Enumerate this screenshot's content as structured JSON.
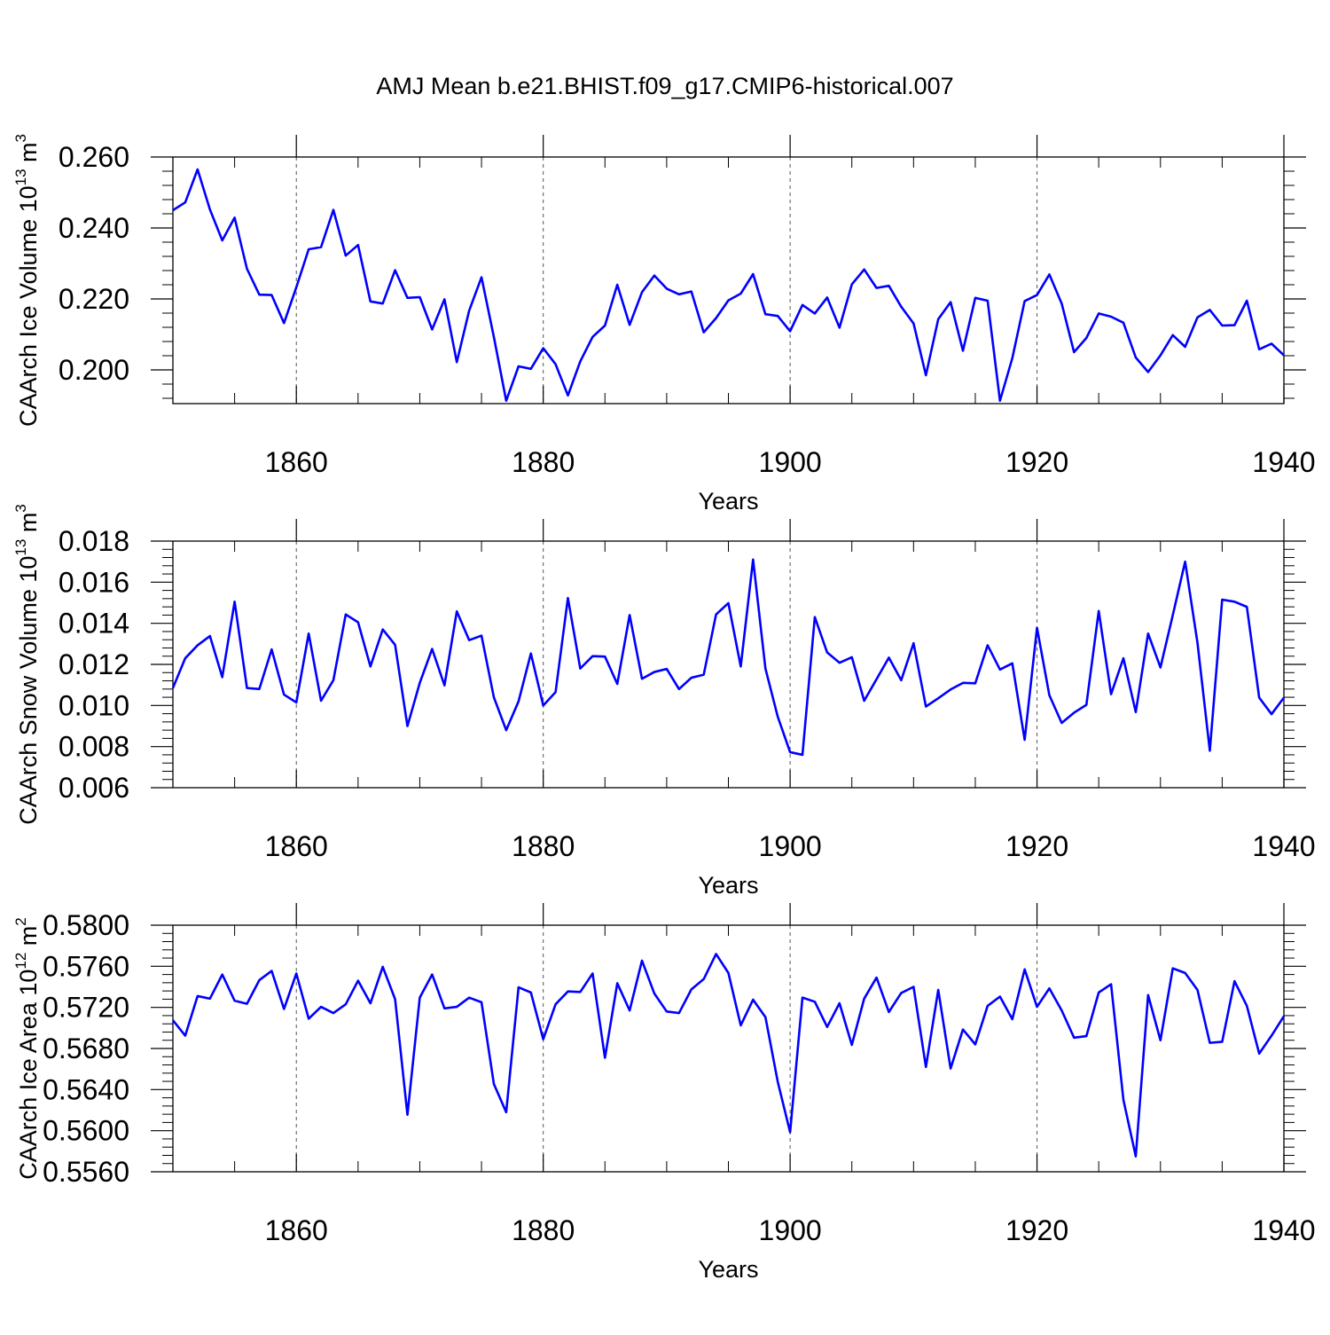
{
  "title": "AMJ Mean b.e21.BHIST.f09_g17.CMIP6-historical.007",
  "line_color": "#0000ff",
  "chart_data": [
    {
      "type": "line",
      "xlabel": "Years",
      "ylabel_main": "CAArch Ice Volume 10",
      "ylabel_exp": "13",
      "ylabel_unit": " m",
      "ylabel_unit_exp": "3",
      "xlim": [
        1850,
        1940
      ],
      "ylim": [
        0.1905,
        0.26
      ],
      "xticks": [
        1860,
        1880,
        1900,
        1920,
        1940
      ],
      "xtick_labels": [
        "1860",
        "1880",
        "1900",
        "1920",
        "1940"
      ],
      "yticks": [
        0.2,
        0.22,
        0.24,
        0.26
      ],
      "ytick_labels": [
        "0.200",
        "0.220",
        "0.240",
        "0.260"
      ],
      "grid": "vertical-dashed",
      "x": [
        1850,
        1851,
        1852,
        1853,
        1854,
        1855,
        1856,
        1857,
        1858,
        1859,
        1860,
        1861,
        1862,
        1863,
        1864,
        1865,
        1866,
        1867,
        1868,
        1869,
        1870,
        1871,
        1872,
        1873,
        1874,
        1875,
        1876,
        1877,
        1878,
        1879,
        1880,
        1881,
        1882,
        1883,
        1884,
        1885,
        1886,
        1887,
        1888,
        1889,
        1890,
        1891,
        1892,
        1893,
        1894,
        1895,
        1896,
        1897,
        1898,
        1899,
        1900,
        1901,
        1902,
        1903,
        1904,
        1905,
        1906,
        1907,
        1908,
        1909,
        1910,
        1911,
        1912,
        1913,
        1914,
        1915,
        1916,
        1917,
        1918,
        1919,
        1920,
        1921,
        1922,
        1923,
        1924,
        1925,
        1926,
        1927,
        1928,
        1929,
        1930,
        1931,
        1932,
        1933,
        1934,
        1935,
        1936,
        1937,
        1938,
        1939,
        1940
      ],
      "y": [
        0.245,
        0.2472,
        0.2565,
        0.2452,
        0.2365,
        0.2429,
        0.2285,
        0.2212,
        0.2211,
        0.2132,
        0.2233,
        0.234,
        0.2346,
        0.2451,
        0.2322,
        0.2352,
        0.2193,
        0.2187,
        0.2281,
        0.2203,
        0.2205,
        0.2114,
        0.2199,
        0.2022,
        0.2167,
        0.2261,
        0.2093,
        0.1913,
        0.201,
        0.2003,
        0.2061,
        0.2016,
        0.1928,
        0.2024,
        0.2093,
        0.2125,
        0.224,
        0.2127,
        0.2219,
        0.2266,
        0.2229,
        0.2213,
        0.2221,
        0.2106,
        0.2146,
        0.2196,
        0.2215,
        0.227,
        0.2157,
        0.2152,
        0.2109,
        0.2183,
        0.2159,
        0.2204,
        0.2119,
        0.2241,
        0.2283,
        0.2231,
        0.2237,
        0.2178,
        0.2131,
        0.1985,
        0.2143,
        0.2191,
        0.2054,
        0.2203,
        0.2195,
        0.1913,
        0.2033,
        0.2194,
        0.2211,
        0.2269,
        0.2187,
        0.205,
        0.209,
        0.2159,
        0.215,
        0.2133,
        0.2035,
        0.1994,
        0.2041,
        0.2098,
        0.2065,
        0.2148,
        0.2169,
        0.2125,
        0.2126,
        0.2195,
        0.2058,
        0.2074,
        0.2041
      ]
    },
    {
      "type": "line",
      "xlabel": "Years",
      "ylabel_main": "CAArch Snow Volume 10",
      "ylabel_exp": "13",
      "ylabel_unit": " m",
      "ylabel_unit_exp": "3",
      "xlim": [
        1850,
        1940
      ],
      "ylim": [
        0.006,
        0.018
      ],
      "xticks": [
        1860,
        1880,
        1900,
        1920,
        1940
      ],
      "xtick_labels": [
        "1860",
        "1880",
        "1900",
        "1920",
        "1940"
      ],
      "yticks": [
        0.006,
        0.008,
        0.01,
        0.012,
        0.014,
        0.016,
        0.018
      ],
      "ytick_labels": [
        "0.006",
        "0.008",
        "0.010",
        "0.012",
        "0.014",
        "0.016",
        "0.018"
      ],
      "grid": "vertical-dashed",
      "x": [
        1850,
        1851,
        1852,
        1853,
        1854,
        1855,
        1856,
        1857,
        1858,
        1859,
        1860,
        1861,
        1862,
        1863,
        1864,
        1865,
        1866,
        1867,
        1868,
        1869,
        1870,
        1871,
        1872,
        1873,
        1874,
        1875,
        1876,
        1877,
        1878,
        1879,
        1880,
        1881,
        1882,
        1883,
        1884,
        1885,
        1886,
        1887,
        1888,
        1889,
        1890,
        1891,
        1892,
        1893,
        1894,
        1895,
        1896,
        1897,
        1898,
        1899,
        1900,
        1901,
        1902,
        1903,
        1904,
        1905,
        1906,
        1907,
        1908,
        1909,
        1910,
        1911,
        1912,
        1913,
        1914,
        1915,
        1916,
        1917,
        1918,
        1919,
        1920,
        1921,
        1922,
        1923,
        1924,
        1925,
        1926,
        1927,
        1928,
        1929,
        1930,
        1931,
        1932,
        1933,
        1934,
        1935,
        1936,
        1937,
        1938,
        1939,
        1940
      ],
      "y": [
        0.01085,
        0.0123,
        0.01293,
        0.01338,
        0.01138,
        0.01505,
        0.01085,
        0.0108,
        0.01273,
        0.01053,
        0.01015,
        0.0135,
        0.01023,
        0.01123,
        0.01443,
        0.01405,
        0.0119,
        0.0137,
        0.01295,
        0.009,
        0.0111,
        0.01275,
        0.01098,
        0.01458,
        0.01318,
        0.0134,
        0.0104,
        0.0088,
        0.0102,
        0.01253,
        0.01,
        0.01065,
        0.01523,
        0.0118,
        0.0124,
        0.01238,
        0.01105,
        0.0144,
        0.0113,
        0.01163,
        0.01178,
        0.0108,
        0.01135,
        0.0115,
        0.01443,
        0.01498,
        0.0119,
        0.0171,
        0.0118,
        0.00945,
        0.00773,
        0.0076,
        0.0143,
        0.01258,
        0.01208,
        0.01235,
        0.01023,
        0.01128,
        0.01233,
        0.01123,
        0.01303,
        0.00995,
        0.01035,
        0.01078,
        0.0111,
        0.01108,
        0.01293,
        0.01175,
        0.01205,
        0.00833,
        0.01378,
        0.0105,
        0.00915,
        0.00965,
        0.01003,
        0.0146,
        0.01055,
        0.0123,
        0.00968,
        0.0135,
        0.01185,
        0.0144,
        0.017,
        0.01305,
        0.0078,
        0.01515,
        0.01505,
        0.0148,
        0.01038,
        0.00958,
        0.01038
      ]
    },
    {
      "type": "line",
      "xlabel": "Years",
      "ylabel_main": "CAArch Ice Area 10",
      "ylabel_exp": "12",
      "ylabel_unit": " m",
      "ylabel_unit_exp": "2",
      "xlim": [
        1850,
        1940
      ],
      "ylim": [
        0.556,
        0.58
      ],
      "xticks": [
        1860,
        1880,
        1900,
        1920,
        1940
      ],
      "xtick_labels": [
        "1860",
        "1880",
        "1900",
        "1920",
        "1940"
      ],
      "yticks": [
        0.556,
        0.56,
        0.564,
        0.568,
        0.572,
        0.576,
        0.58
      ],
      "ytick_labels": [
        "0.5560",
        "0.5600",
        "0.5640",
        "0.5680",
        "0.5720",
        "0.5760",
        "0.5800"
      ],
      "grid": "vertical-dashed",
      "x": [
        1850,
        1851,
        1852,
        1853,
        1854,
        1855,
        1856,
        1857,
        1858,
        1859,
        1860,
        1861,
        1862,
        1863,
        1864,
        1865,
        1866,
        1867,
        1868,
        1869,
        1870,
        1871,
        1872,
        1873,
        1874,
        1875,
        1876,
        1877,
        1878,
        1879,
        1880,
        1881,
        1882,
        1883,
        1884,
        1885,
        1886,
        1887,
        1888,
        1889,
        1890,
        1891,
        1892,
        1893,
        1894,
        1895,
        1896,
        1897,
        1898,
        1899,
        1900,
        1901,
        1902,
        1903,
        1904,
        1905,
        1906,
        1907,
        1908,
        1909,
        1910,
        1911,
        1912,
        1913,
        1914,
        1915,
        1916,
        1917,
        1918,
        1919,
        1920,
        1921,
        1922,
        1923,
        1924,
        1925,
        1926,
        1927,
        1928,
        1929,
        1930,
        1931,
        1932,
        1933,
        1934,
        1935,
        1936,
        1937,
        1938,
        1939,
        1940
      ],
      "y": [
        0.57075,
        0.56925,
        0.5731,
        0.57285,
        0.5752,
        0.57265,
        0.57235,
        0.57465,
        0.57555,
        0.57185,
        0.5753,
        0.5709,
        0.57205,
        0.57145,
        0.5723,
        0.5746,
        0.5724,
        0.57595,
        0.5728,
        0.56155,
        0.57295,
        0.5752,
        0.5719,
        0.57205,
        0.57295,
        0.5725,
        0.56455,
        0.5618,
        0.57395,
        0.57345,
        0.5689,
        0.5723,
        0.57355,
        0.5735,
        0.5753,
        0.5671,
        0.57435,
        0.5717,
        0.57655,
        0.57335,
        0.5716,
        0.57145,
        0.57375,
        0.57475,
        0.5772,
        0.57535,
        0.57025,
        0.57275,
        0.57105,
        0.56475,
        0.55985,
        0.57295,
        0.57255,
        0.5701,
        0.5724,
        0.56835,
        0.57285,
        0.5749,
        0.57155,
        0.5734,
        0.574,
        0.5662,
        0.5737,
        0.56605,
        0.56985,
        0.5684,
        0.57215,
        0.57305,
        0.57085,
        0.5757,
        0.57205,
        0.57385,
        0.5717,
        0.56905,
        0.5692,
        0.57345,
        0.57425,
        0.563,
        0.5575,
        0.5732,
        0.5688,
        0.5758,
        0.57535,
        0.5737,
        0.56855,
        0.56865,
        0.57455,
        0.57215,
        0.5675,
        0.56925,
        0.57115
      ]
    }
  ]
}
